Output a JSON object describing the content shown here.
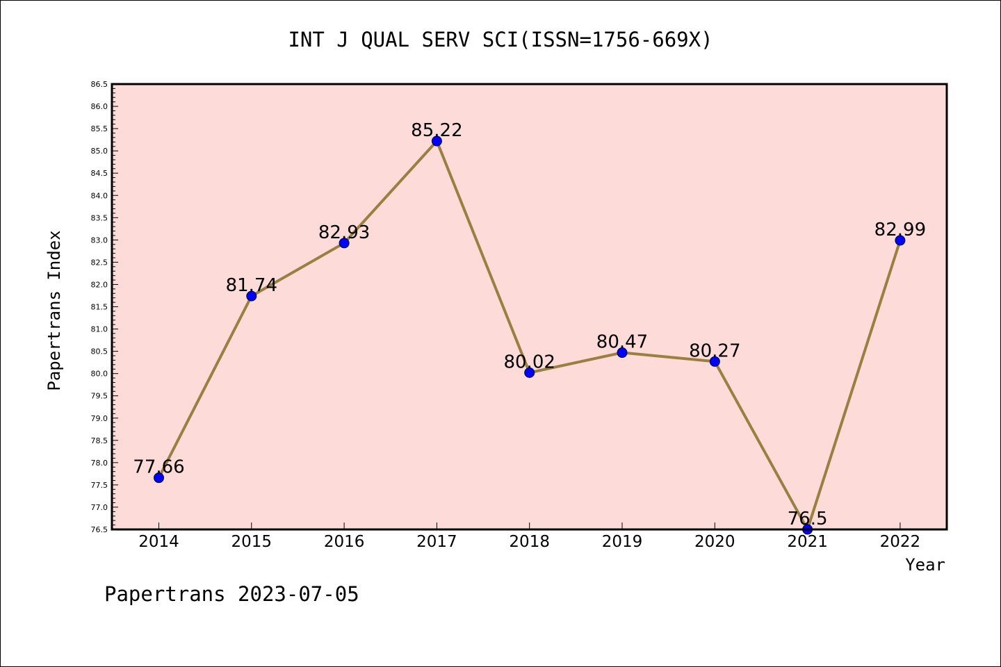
{
  "chart_data": {
    "type": "line",
    "title": "INT J QUAL SERV SCI(ISSN=1756-669X)",
    "xlabel": "Year",
    "ylabel": "Papertrans Index",
    "categories": [
      "2014",
      "2015",
      "2016",
      "2017",
      "2018",
      "2019",
      "2020",
      "2021",
      "2022"
    ],
    "series": [
      {
        "values": [
          77.66,
          81.74,
          82.93,
          85.22,
          80.02,
          80.47,
          80.27,
          76.5,
          82.99
        ],
        "labels": [
          "77.66",
          "81.74",
          "82.93",
          "85.22",
          "80.02",
          "80.47",
          "80.27",
          "76.5",
          "82.99"
        ]
      }
    ],
    "ylim": [
      76.5,
      86.5
    ],
    "yticks": [
      "76.5",
      "77.0",
      "77.5",
      "78.0",
      "78.5",
      "79.0",
      "79.5",
      "80.0",
      "80.5",
      "81.0",
      "81.5",
      "82.0",
      "82.5",
      "83.0",
      "83.5",
      "84.0",
      "84.5",
      "85.0",
      "85.5",
      "86.0",
      "86.5"
    ],
    "grid": false,
    "legend": "none",
    "colors": {
      "plot_background": "#fddbd9",
      "line": "#9a8040",
      "marker": "#0000ff"
    }
  },
  "footer": "Papertrans 2023-07-05"
}
